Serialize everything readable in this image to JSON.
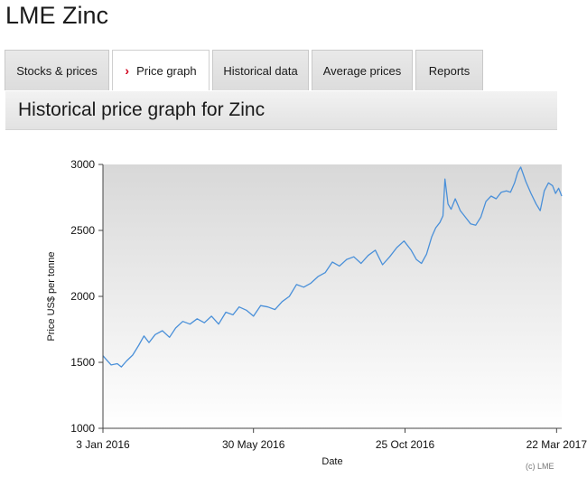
{
  "title": "LME Zinc",
  "tabs": [
    {
      "label": "Stocks & prices",
      "active": false
    },
    {
      "label": "Price graph",
      "active": true
    },
    {
      "label": "Historical data",
      "active": false
    },
    {
      "label": "Average prices",
      "active": false
    },
    {
      "label": "Reports",
      "active": false
    }
  ],
  "section_title": "Historical price graph for Zinc",
  "chart_credit": "(c) LME",
  "colors": {
    "line": "#4a90d9",
    "active_tab_chevron": "#d0021b"
  },
  "chart_data": {
    "type": "line",
    "title": "",
    "xlabel": "Date",
    "ylabel": "Price US$ per tonne",
    "ylim": [
      1000,
      3000
    ],
    "yticks": [
      1000,
      1500,
      2000,
      2500,
      3000
    ],
    "xlim": [
      "2016-01-04",
      "2017-03-27"
    ],
    "xticks": [
      {
        "label": "3 Jan 2016",
        "date": "2016-01-04"
      },
      {
        "label": "30 May 2016",
        "date": "2016-05-30"
      },
      {
        "label": "25 Oct 2016",
        "date": "2016-10-25"
      },
      {
        "label": "22 Mar 2017",
        "date": "2017-03-22"
      }
    ],
    "grid": false,
    "series": [
      {
        "points": [
          [
            "2016-01-04",
            1550
          ],
          [
            "2016-01-08",
            1515
          ],
          [
            "2016-01-12",
            1480
          ],
          [
            "2016-01-18",
            1490
          ],
          [
            "2016-01-22",
            1465
          ],
          [
            "2016-01-27",
            1510
          ],
          [
            "2016-02-02",
            1555
          ],
          [
            "2016-02-08",
            1630
          ],
          [
            "2016-02-13",
            1700
          ],
          [
            "2016-02-18",
            1650
          ],
          [
            "2016-02-24",
            1710
          ],
          [
            "2016-03-02",
            1740
          ],
          [
            "2016-03-09",
            1690
          ],
          [
            "2016-03-15",
            1760
          ],
          [
            "2016-03-22",
            1810
          ],
          [
            "2016-03-29",
            1790
          ],
          [
            "2016-04-05",
            1830
          ],
          [
            "2016-04-12",
            1800
          ],
          [
            "2016-04-19",
            1850
          ],
          [
            "2016-04-26",
            1790
          ],
          [
            "2016-05-03",
            1880
          ],
          [
            "2016-05-10",
            1860
          ],
          [
            "2016-05-16",
            1920
          ],
          [
            "2016-05-23",
            1895
          ],
          [
            "2016-05-30",
            1850
          ],
          [
            "2016-06-06",
            1930
          ],
          [
            "2016-06-13",
            1920
          ],
          [
            "2016-06-20",
            1900
          ],
          [
            "2016-06-27",
            1960
          ],
          [
            "2016-07-04",
            2000
          ],
          [
            "2016-07-11",
            2090
          ],
          [
            "2016-07-18",
            2070
          ],
          [
            "2016-07-25",
            2100
          ],
          [
            "2016-08-01",
            2150
          ],
          [
            "2016-08-08",
            2180
          ],
          [
            "2016-08-15",
            2260
          ],
          [
            "2016-08-22",
            2230
          ],
          [
            "2016-08-29",
            2280
          ],
          [
            "2016-09-05",
            2300
          ],
          [
            "2016-09-12",
            2250
          ],
          [
            "2016-09-19",
            2310
          ],
          [
            "2016-09-26",
            2350
          ],
          [
            "2016-10-03",
            2240
          ],
          [
            "2016-10-10",
            2300
          ],
          [
            "2016-10-17",
            2370
          ],
          [
            "2016-10-24",
            2420
          ],
          [
            "2016-10-31",
            2350
          ],
          [
            "2016-11-05",
            2280
          ],
          [
            "2016-11-10",
            2250
          ],
          [
            "2016-11-15",
            2320
          ],
          [
            "2016-11-20",
            2450
          ],
          [
            "2016-11-24",
            2520
          ],
          [
            "2016-11-28",
            2560
          ],
          [
            "2016-12-01",
            2610
          ],
          [
            "2016-12-03",
            2890
          ],
          [
            "2016-12-06",
            2700
          ],
          [
            "2016-12-09",
            2660
          ],
          [
            "2016-12-13",
            2740
          ],
          [
            "2016-12-18",
            2650
          ],
          [
            "2016-12-23",
            2600
          ],
          [
            "2016-12-28",
            2550
          ],
          [
            "2017-01-02",
            2540
          ],
          [
            "2017-01-07",
            2600
          ],
          [
            "2017-01-12",
            2720
          ],
          [
            "2017-01-17",
            2760
          ],
          [
            "2017-01-22",
            2740
          ],
          [
            "2017-01-27",
            2790
          ],
          [
            "2017-02-01",
            2800
          ],
          [
            "2017-02-05",
            2790
          ],
          [
            "2017-02-09",
            2860
          ],
          [
            "2017-02-12",
            2940
          ],
          [
            "2017-02-15",
            2980
          ],
          [
            "2017-02-20",
            2870
          ],
          [
            "2017-02-25",
            2780
          ],
          [
            "2017-03-02",
            2700
          ],
          [
            "2017-03-06",
            2650
          ],
          [
            "2017-03-10",
            2800
          ],
          [
            "2017-03-14",
            2860
          ],
          [
            "2017-03-18",
            2840
          ],
          [
            "2017-03-21",
            2780
          ],
          [
            "2017-03-24",
            2820
          ],
          [
            "2017-03-27",
            2760
          ]
        ]
      }
    ]
  }
}
